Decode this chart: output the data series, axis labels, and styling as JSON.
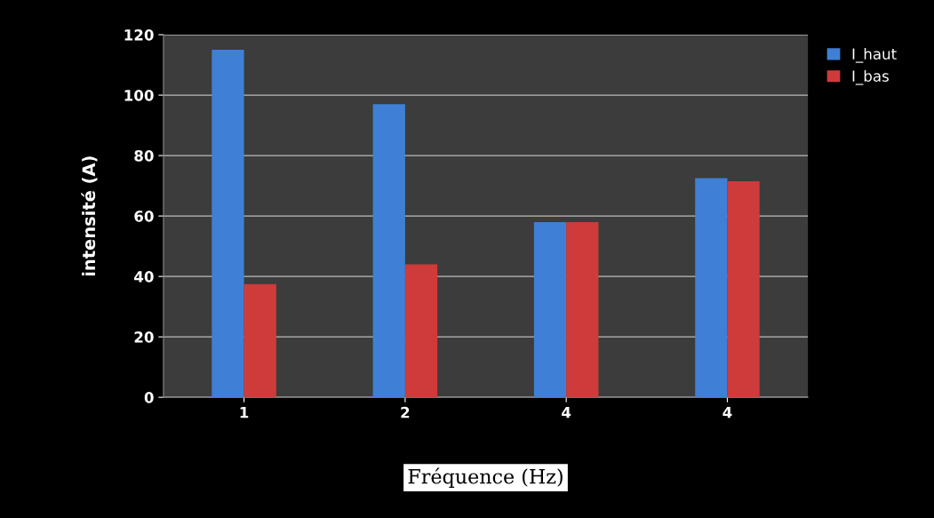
{
  "chart_data": {
    "type": "bar",
    "xlabel": "Fréquence (Hz)",
    "ylabel": "intensité (A)",
    "categories": [
      "1",
      "2",
      "4",
      "4"
    ],
    "series": [
      {
        "name": "I_haut",
        "color": "#3f80d6",
        "values": [
          115,
          97,
          58,
          72.5
        ]
      },
      {
        "name": "I_bas",
        "color": "#cf3b3b",
        "values": [
          37.5,
          44,
          58,
          71.5
        ]
      }
    ],
    "ylim": [
      0,
      120
    ],
    "yticks": [
      0,
      20,
      40,
      60,
      80,
      100,
      120
    ],
    "grid": "y",
    "legend": "top right"
  }
}
